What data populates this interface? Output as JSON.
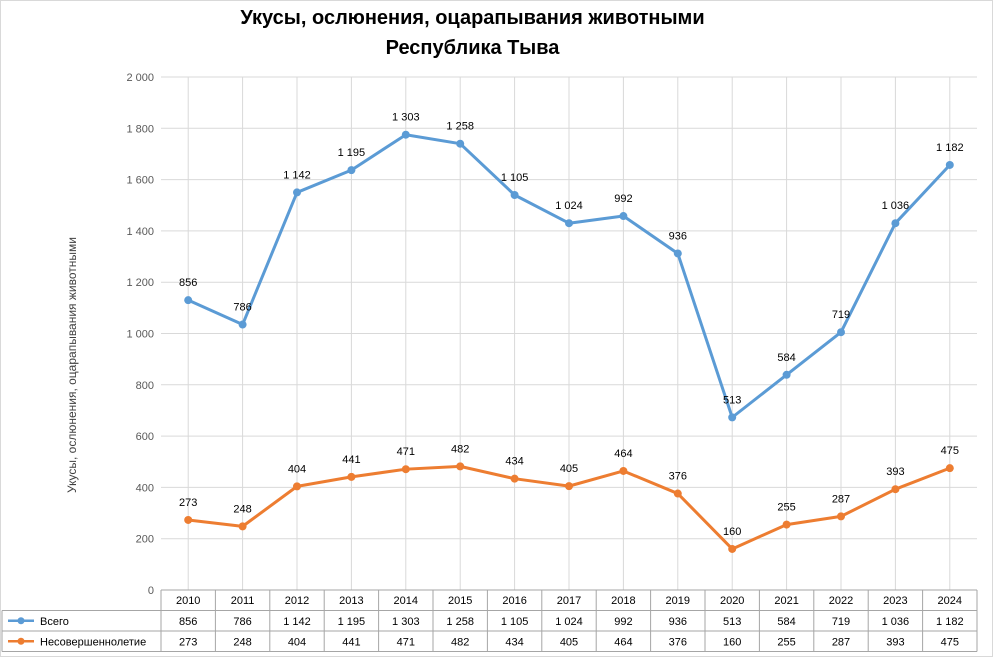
{
  "chart_data": {
    "type": "line",
    "title": "Укусы, ослюнения, оцарапывания животными",
    "subtitle": "Республика Тыва",
    "ylabel": "Укусы, ослюнения, оцарапывания животными",
    "xlabel": "",
    "ylim": [
      0,
      2000
    ],
    "ytick_step": 200,
    "ytick_labels": [
      "0",
      "200",
      "400",
      "600",
      "800",
      "1 000",
      "1 200",
      "1 400",
      "1 600",
      "1 800",
      "2 000"
    ],
    "categories": [
      "2010",
      "2011",
      "2012",
      "2013",
      "2014",
      "2015",
      "2016",
      "2017",
      "2018",
      "2019",
      "2020",
      "2021",
      "2022",
      "2023",
      "2024"
    ],
    "grid": true,
    "legend": "data-table-left",
    "series": [
      {
        "name": "Всего",
        "color": "#5B9BD5",
        "values": [
          1130,
          1035,
          1550,
          1637,
          1775,
          1740,
          1540,
          1430,
          1458,
          1312,
          673,
          839,
          1005,
          1430,
          1657
        ],
        "labels": [
          "856",
          "786",
          "1 142",
          "1 195",
          "1 303",
          "1 258",
          "1 105",
          "1 024",
          "992",
          "936",
          "513",
          "584",
          "719",
          "1 036",
          "1 182"
        ]
      },
      {
        "name": "Несовершеннолетие",
        "color": "#ED7D31",
        "values": [
          273,
          248,
          404,
          441,
          471,
          482,
          434,
          405,
          464,
          376,
          160,
          255,
          287,
          393,
          475
        ],
        "labels": [
          "273",
          "248",
          "404",
          "441",
          "471",
          "482",
          "434",
          "405",
          "464",
          "376",
          "160",
          "255",
          "287",
          "393",
          "475"
        ]
      }
    ]
  }
}
